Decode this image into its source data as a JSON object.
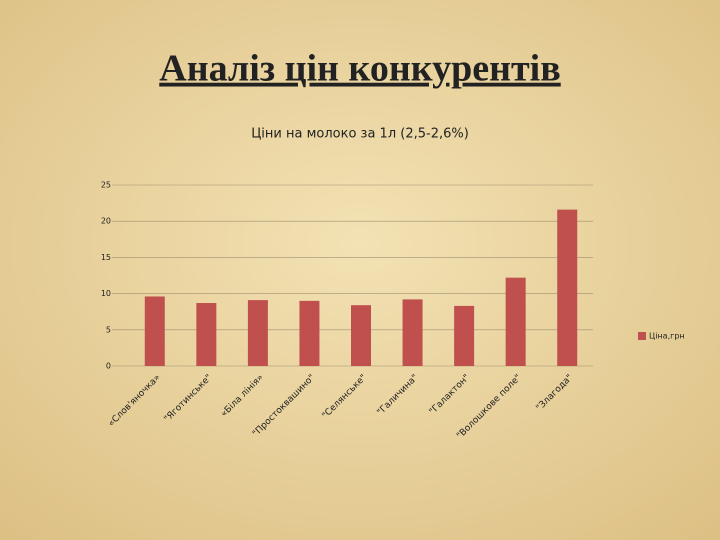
{
  "slide_title": "Аналіз цін конкурентів",
  "chart_data": {
    "type": "bar",
    "title": "Ціни на молоко за 1л (2,5-2,6%)",
    "categories": [
      "«Слов'яночка»",
      "\"Яготинське\"",
      "«Біла лінія»",
      "\"Простоквашино\"",
      "\"Селянське\"",
      "\"Галичина\"",
      "\"Галактон\"",
      "\"Волошкове поле\"",
      "\"Злагода\""
    ],
    "series": [
      {
        "name": "Ціна,грн",
        "color": "#c0504d",
        "values": [
          9.6,
          8.7,
          9.1,
          9.0,
          8.4,
          9.2,
          8.3,
          12.2,
          21.6
        ]
      }
    ],
    "ylim": [
      0,
      25
    ],
    "yticks": [
      0,
      5,
      10,
      15,
      20,
      25
    ],
    "grid": true,
    "legend": "right"
  }
}
